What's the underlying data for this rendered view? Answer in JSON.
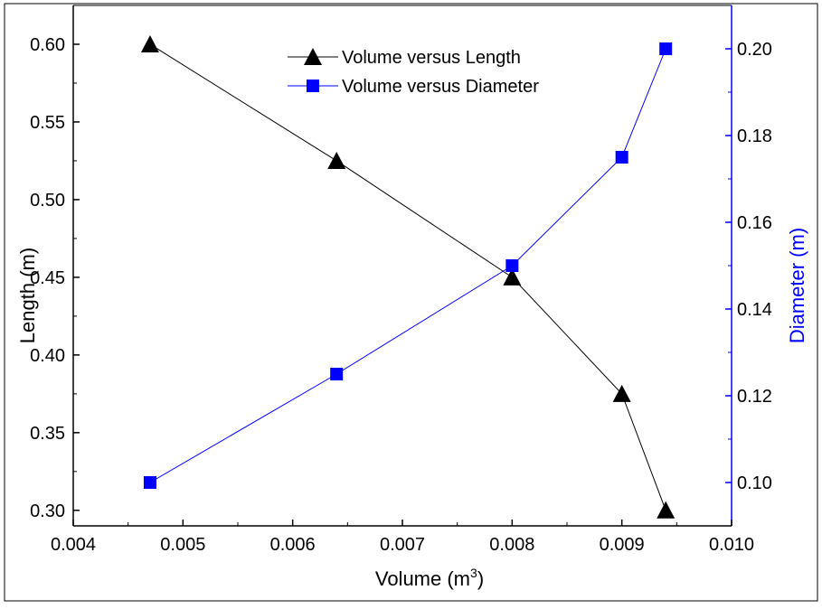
{
  "chart_data": {
    "type": "line",
    "xlabel": "Volume (m",
    "xlabel_sup": "3",
    "xlabel_close": ")",
    "ylabel_left": "Length (m)",
    "ylabel_right": "Diameter (m)",
    "xlim": [
      0.004,
      0.01
    ],
    "ylim_left": [
      0.29,
      0.625
    ],
    "ylim_right": [
      0.09,
      0.21
    ],
    "x_ticks": [
      0.004,
      0.005,
      0.006,
      0.007,
      0.008,
      0.009,
      0.01
    ],
    "x_tick_labels": [
      "0.004",
      "0.005",
      "0.006",
      "0.007",
      "0.008",
      "0.009",
      "0.010"
    ],
    "y_left_ticks": [
      0.3,
      0.35,
      0.4,
      0.45,
      0.5,
      0.55,
      0.6
    ],
    "y_left_tick_labels": [
      "0.30",
      "0.35",
      "0.40",
      "0.45",
      "0.50",
      "0.55",
      "0.60"
    ],
    "y_right_ticks": [
      0.1,
      0.12,
      0.14,
      0.16,
      0.18,
      0.2
    ],
    "y_right_tick_labels": [
      "0.10",
      "0.12",
      "0.14",
      "0.16",
      "0.18",
      "0.20"
    ],
    "grid": false,
    "legend_position": "top-center",
    "series": [
      {
        "name": "Volume versus Length",
        "axis": "left",
        "marker": "triangle",
        "color": "#000000",
        "x": [
          0.0047,
          0.0064,
          0.008,
          0.009,
          0.0094
        ],
        "y": [
          0.6,
          0.525,
          0.45,
          0.375,
          0.3
        ]
      },
      {
        "name": "Volume versus Diameter",
        "axis": "right",
        "marker": "square",
        "color": "#0000ff",
        "x": [
          0.0047,
          0.0064,
          0.008,
          0.009,
          0.0094
        ],
        "y": [
          0.1,
          0.125,
          0.15,
          0.175,
          0.2
        ]
      }
    ]
  }
}
